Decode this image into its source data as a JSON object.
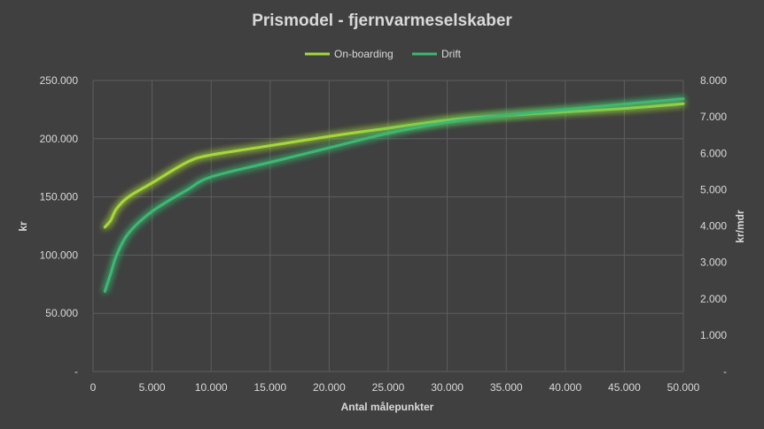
{
  "chart_data": {
    "type": "line",
    "title": "Prismodel - fjernvarmeselskaber",
    "xlabel": "Antal målepunkter",
    "ylabel": "kr",
    "y2label": "kr/mdr",
    "xlim": [
      0,
      50000
    ],
    "ylim": [
      0,
      250000
    ],
    "y2lim": [
      0,
      8000
    ],
    "x_ticks": [
      "0",
      "5.000",
      "10.000",
      "15.000",
      "20.000",
      "25.000",
      "30.000",
      "35.000",
      "40.000",
      "45.000",
      "50.000"
    ],
    "y_ticks": [
      "-",
      "50.000",
      "100.000",
      "150.000",
      "200.000",
      "250.000"
    ],
    "y2_ticks": [
      "-",
      "1.000",
      "2.000",
      "3.000",
      "4.000",
      "5.000",
      "6.000",
      "7.000",
      "8.000"
    ],
    "grid": true,
    "legend_position": "top",
    "series": [
      {
        "name": "On-boarding",
        "axis": "left",
        "color": "#a6d83a",
        "x": [
          1000,
          1500,
          2000,
          3000,
          5000,
          8000,
          10000,
          15000,
          20000,
          25000,
          30000,
          35000,
          40000,
          45000,
          50000
        ],
        "y": [
          124000,
          130000,
          140000,
          150000,
          162000,
          180000,
          186000,
          194000,
          202000,
          209000,
          216000,
          220000,
          223000,
          226000,
          230000
        ]
      },
      {
        "name": "Drift",
        "axis": "right",
        "color": "#3db872",
        "x": [
          1000,
          1500,
          2000,
          3000,
          5000,
          8000,
          10000,
          15000,
          20000,
          25000,
          30000,
          35000,
          40000,
          45000,
          50000
        ],
        "y": [
          2200,
          2700,
          3200,
          3800,
          4400,
          5000,
          5350,
          5750,
          6150,
          6550,
          6850,
          7050,
          7200,
          7350,
          7500
        ]
      }
    ]
  }
}
